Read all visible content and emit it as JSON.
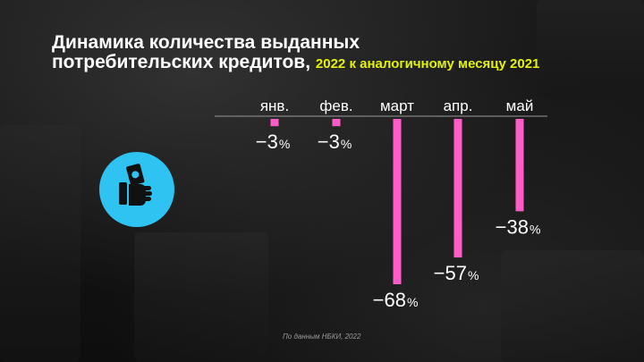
{
  "title": {
    "line1": "Динамика количества выданных",
    "line2": "потребительских кредитов,",
    "subtitle": "2022 к аналогичному месяцу 2021"
  },
  "source": "По данным НБКИ, 2022",
  "icon": {
    "name": "money-hand-icon",
    "color": "#2ec3f0"
  },
  "colors": {
    "bar": "#ff5cc8",
    "text": "#ffffff",
    "accent": "#e4f200",
    "axis": "#9a9a9a"
  },
  "chart_data": {
    "type": "bar",
    "orientation": "vertical-downward",
    "categories": [
      "янв.",
      "фев.",
      "март",
      "апр.",
      "май"
    ],
    "values": [
      -3,
      -3,
      -68,
      -57,
      -38
    ],
    "labels": [
      "−3",
      "−3",
      "−68",
      "−57",
      "−38"
    ],
    "unit": "%",
    "ylim": [
      -68,
      0
    ],
    "category_axis_position": "top",
    "grid": false,
    "legend": "none"
  }
}
